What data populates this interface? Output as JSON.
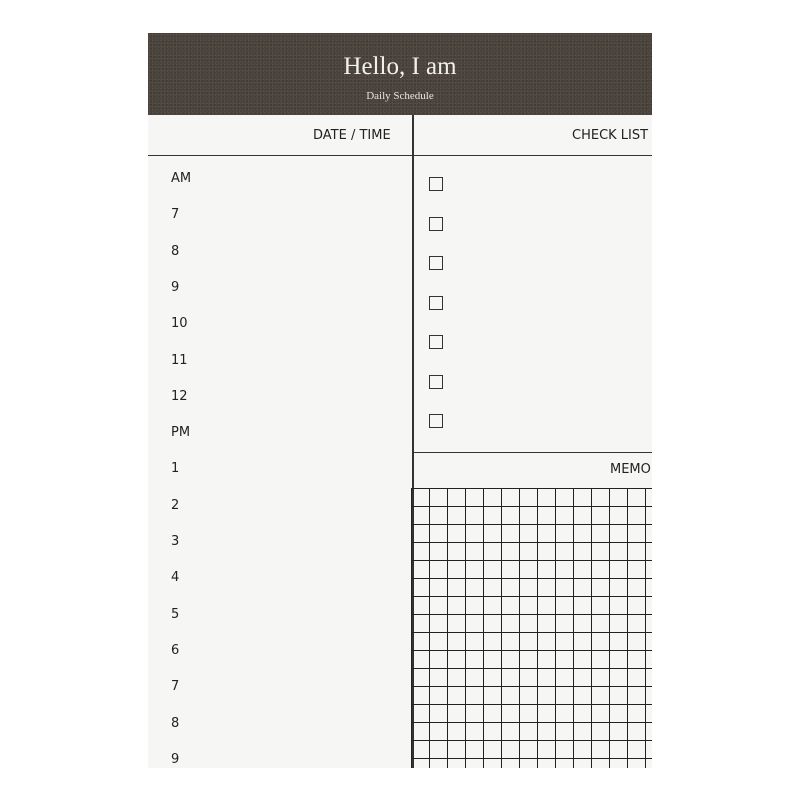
{
  "header": {
    "title": "Hello, I am",
    "subtitle": "Daily Schedule"
  },
  "columns": {
    "date_time": "DATE / TIME",
    "check_list": "CHECK LIST",
    "memo": "MEMO"
  },
  "times": [
    "AM",
    "7",
    "8",
    "9",
    "10",
    "11",
    "12",
    "PM",
    "1",
    "2",
    "3",
    "4",
    "5",
    "6",
    "7",
    "8",
    "9"
  ],
  "checklist": [
    {
      "checked": false
    },
    {
      "checked": false
    },
    {
      "checked": false
    },
    {
      "checked": false
    },
    {
      "checked": false
    },
    {
      "checked": false
    },
    {
      "checked": false
    }
  ],
  "colors": {
    "band": "#4a433c",
    "paper": "#f6f6f4",
    "ink": "#222222"
  }
}
